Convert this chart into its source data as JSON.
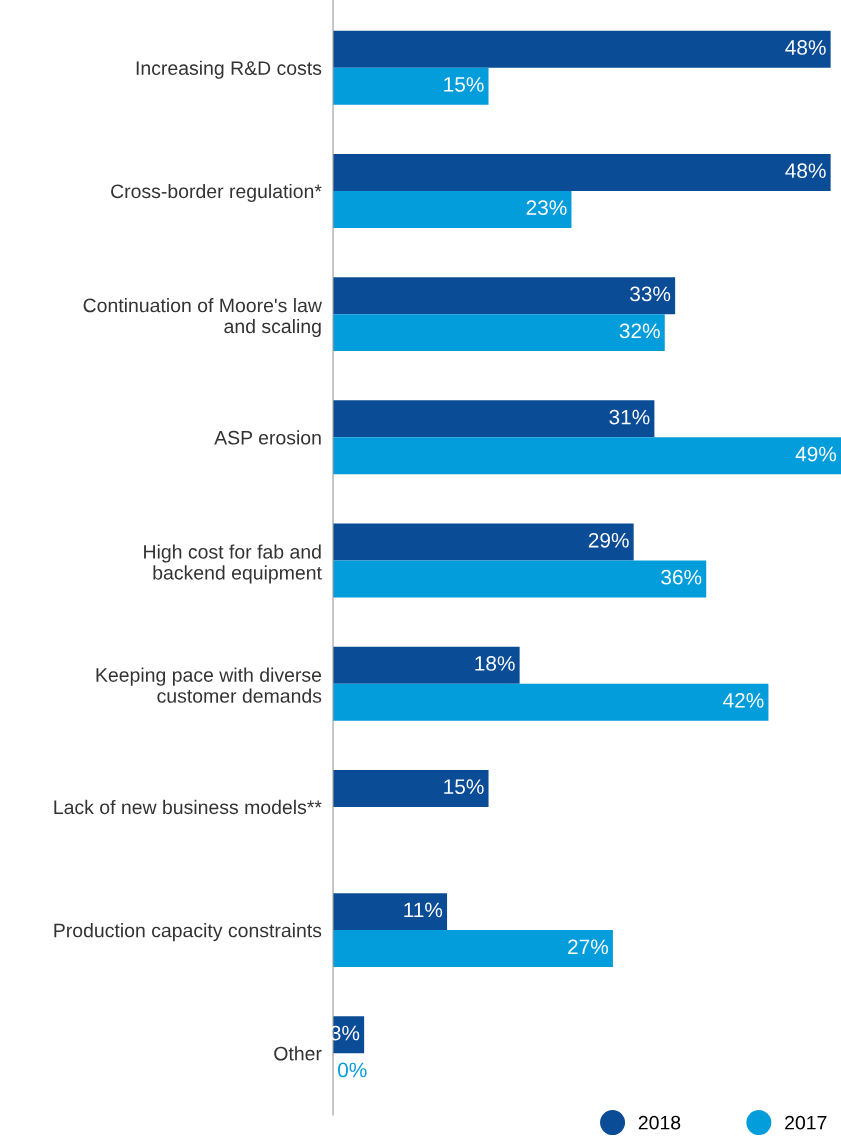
{
  "chart_data": {
    "type": "bar",
    "orientation": "horizontal",
    "categories": [
      "Increasing R&D costs",
      "Cross-border regulation*",
      "Continuation of Moore's law\nand scaling",
      "ASP erosion",
      "High cost for fab and\nbackend equipment",
      "Keeping pace with diverse\ncustomer demands",
      "Lack of new business models**",
      "Production capacity constraints",
      "Other"
    ],
    "series": [
      {
        "name": "2018",
        "color": "#0b4c97",
        "values": [
          48,
          48,
          33,
          31,
          29,
          18,
          15,
          11,
          3
        ],
        "value_labels": [
          "48%",
          "48%",
          "33%",
          "31%",
          "29%",
          "18%",
          "15%",
          "11%",
          "3%"
        ]
      },
      {
        "name": "2017",
        "color": "#049ddb",
        "values": [
          15,
          23,
          32,
          49,
          36,
          42,
          null,
          27,
          0
        ],
        "value_labels": [
          "15%",
          "23%",
          "32%",
          "49%",
          "36%",
          "42%",
          null,
          "27%",
          "0%"
        ]
      }
    ],
    "tick_labels": "y",
    "legend": "bottom right",
    "grid": false
  }
}
